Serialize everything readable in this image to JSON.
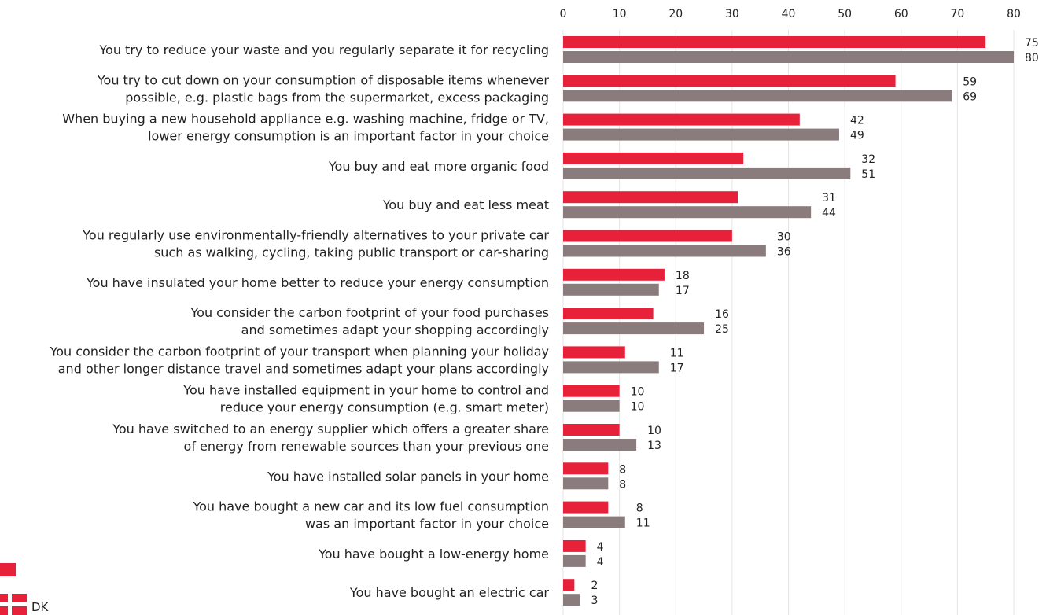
{
  "chart_data": {
    "type": "bar",
    "orientation": "horizontal",
    "xlim": [
      0,
      80
    ],
    "x_ticks": [
      0,
      10,
      20,
      30,
      40,
      50,
      60,
      70,
      80
    ],
    "x_axis_position": "top",
    "grid": true,
    "categories": [
      [
        "You try to reduce your waste and you regularly separate it for recycling"
      ],
      [
        "You try to cut down on your consumption of disposable items whenever",
        "possible, e.g. plastic bags from the supermarket, excess packaging"
      ],
      [
        "When buying a new household appliance e.g. washing machine, fridge or TV,",
        "lower energy consumption is an important factor in your choice"
      ],
      [
        "You buy and eat more organic food"
      ],
      [
        "You buy and eat less meat"
      ],
      [
        "You regularly use environmentally-friendly alternatives to your private car",
        "such as walking, cycling, taking public transport or car-sharing"
      ],
      [
        "You have insulated your home better to reduce your energy consumption"
      ],
      [
        "You consider the carbon footprint of your food purchases",
        "and sometimes adapt your shopping accordingly"
      ],
      [
        "You consider the carbon footprint of your transport when planning your holiday",
        "and other longer distance travel and sometimes adapt your plans accordingly"
      ],
      [
        "You have installed equipment in your home to control and",
        "reduce your energy consumption (e.g. smart meter)"
      ],
      [
        "You have switched to an energy supplier which offers a greater share",
        "of energy from renewable sources than your previous one"
      ],
      [
        "You have installed solar panels in your home"
      ],
      [
        "You have bought a new car and its low fuel consumption",
        "was an important factor in your choice"
      ],
      [
        "You have bought a low-energy home"
      ],
      [
        "You have bought an electric car"
      ]
    ],
    "series": [
      {
        "values": [
          75,
          59,
          42,
          32,
          31,
          30,
          18,
          16,
          11,
          10,
          10,
          8,
          8,
          4,
          2
        ],
        "color": "#e8213a"
      },
      {
        "name": "DK",
        "values": [
          80,
          69,
          49,
          51,
          44,
          36,
          17,
          25,
          17,
          10,
          13,
          8,
          11,
          4,
          3
        ],
        "color": "#8a7b7d"
      }
    ],
    "legend": {
      "placement": "bottom-left",
      "entries": [
        "",
        "DK"
      ]
    }
  }
}
